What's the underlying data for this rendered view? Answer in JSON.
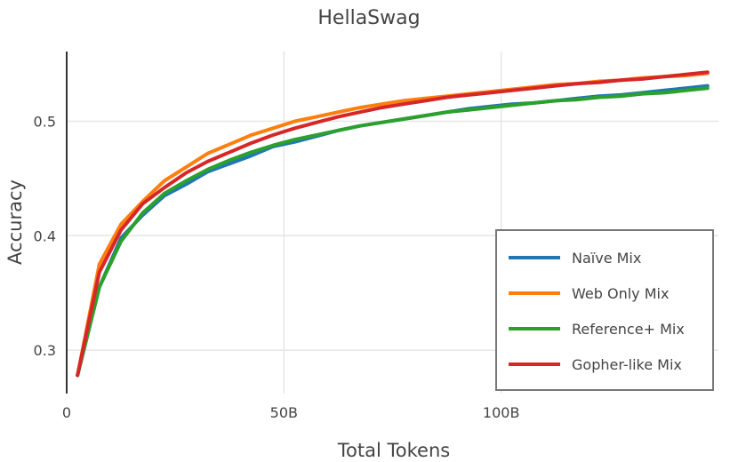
{
  "chart_data": {
    "type": "line",
    "title": "HellaSwag",
    "xlabel": "Total Tokens",
    "ylabel": "Accuracy",
    "x_unit_note": "billions of tokens",
    "xlim": [
      0,
      150
    ],
    "ylim": [
      0.262,
      0.561
    ],
    "x_ticks": [
      0,
      50,
      100
    ],
    "x_tick_labels": [
      "0",
      "50B",
      "100B"
    ],
    "y_ticks": [
      0.3,
      0.4,
      0.5
    ],
    "y_tick_labels": [
      "0.3",
      "0.4",
      "0.5"
    ],
    "grid": true,
    "legend_position": "bottom-right",
    "x": [
      2.5,
      7.5,
      12.5,
      17.5,
      22.5,
      27.5,
      32.5,
      37.5,
      42.5,
      47.5,
      52.5,
      57.5,
      62.5,
      67.5,
      72.5,
      77.5,
      82.5,
      87.5,
      92.5,
      97.5,
      102.5,
      107.5,
      112.5,
      117.5,
      122.5,
      127.5,
      132.5,
      137.5,
      142.5,
      147.5
    ],
    "series": [
      {
        "name": "Naïve Mix",
        "color": "#1f77b4",
        "values": [
          0.278,
          0.355,
          0.398,
          0.418,
          0.435,
          0.445,
          0.456,
          0.463,
          0.47,
          0.478,
          0.482,
          0.487,
          0.492,
          0.496,
          0.499,
          0.502,
          0.505,
          0.508,
          0.511,
          0.513,
          0.515,
          0.516,
          0.518,
          0.52,
          0.522,
          0.523,
          0.525,
          0.527,
          0.529,
          0.531
        ]
      },
      {
        "name": "Web Only Mix",
        "color": "#ff7f0e",
        "values": [
          0.278,
          0.375,
          0.41,
          0.43,
          0.448,
          0.46,
          0.472,
          0.48,
          0.488,
          0.494,
          0.5,
          0.504,
          0.508,
          0.512,
          0.515,
          0.518,
          0.52,
          0.522,
          0.524,
          0.526,
          0.528,
          0.53,
          0.532,
          0.533,
          0.535,
          0.536,
          0.538,
          0.539,
          0.54,
          0.542
        ]
      },
      {
        "name": "Reference+ Mix",
        "color": "#2ca02c",
        "values": [
          0.278,
          0.355,
          0.395,
          0.42,
          0.437,
          0.448,
          0.458,
          0.466,
          0.473,
          0.479,
          0.484,
          0.488,
          0.492,
          0.496,
          0.499,
          0.502,
          0.505,
          0.508,
          0.51,
          0.512,
          0.514,
          0.516,
          0.518,
          0.519,
          0.521,
          0.522,
          0.524,
          0.525,
          0.527,
          0.529
        ]
      },
      {
        "name": "Gopher-like Mix",
        "color": "#d62728",
        "values": [
          0.278,
          0.368,
          0.405,
          0.428,
          0.442,
          0.455,
          0.465,
          0.473,
          0.481,
          0.488,
          0.494,
          0.499,
          0.504,
          0.508,
          0.512,
          0.515,
          0.518,
          0.521,
          0.523,
          0.525,
          0.527,
          0.529,
          0.531,
          0.533,
          0.534,
          0.536,
          0.537,
          0.539,
          0.541,
          0.543
        ]
      }
    ]
  }
}
